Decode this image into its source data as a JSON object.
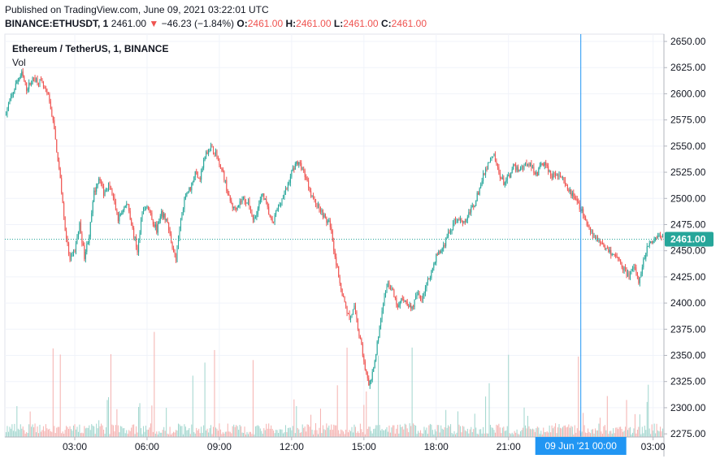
{
  "header": {
    "published": "Published on TradingView.com, June 09, 2021 03:22:01 UTC",
    "symbol": "BINANCE:ETHUSDT, 1",
    "last": "2461.00",
    "arrow": "▼",
    "change": "−46.23 (−1.84%)",
    "o_label": "O:",
    "o_value": "2461.00",
    "h_label": "H:",
    "h_value": "2461.00",
    "l_label": "L:",
    "l_value": "2461.00",
    "c_label": "C:",
    "c_value": "2461.00"
  },
  "legend": {
    "title": "Ethereum / TetherUS, 1, BINANCE",
    "vol": "Vol"
  },
  "colors": {
    "up": "#26a69a",
    "down": "#ef5350",
    "vol_up": "#a3d7cf",
    "vol_down": "#f5b3b1",
    "crosshair": "#2196f3",
    "price_tag": "#26a69a",
    "grid": "#f0f3fa"
  },
  "chart_data": {
    "type": "candlestick",
    "ylim": [
      2272,
      2657
    ],
    "y_ticks": [
      "2650.00",
      "2625.00",
      "2600.00",
      "2575.00",
      "2550.00",
      "2525.00",
      "2500.00",
      "2475.00",
      "2450.00",
      "2425.00",
      "2400.00",
      "2375.00",
      "2350.00",
      "2325.00",
      "2300.00",
      "2275.00"
    ],
    "y_tick_values": [
      2650,
      2625,
      2600,
      2575,
      2550,
      2525,
      2500,
      2475,
      2450,
      2425,
      2400,
      2375,
      2350,
      2325,
      2300,
      2275
    ],
    "x_ticks": [
      "03:00",
      "06:00",
      "09:00",
      "12:00",
      "15:00",
      "18:00",
      "21:00",
      "03:00"
    ],
    "x_tick_hours": [
      3,
      6,
      9,
      12,
      15,
      18,
      21,
      27
    ],
    "x_range_hours": [
      0.1,
      27.45
    ],
    "crosshair_hour": 24,
    "crosshair_label": "09 Jun '21   00:00",
    "last_price": 2461.0,
    "last_price_label": "2461.00",
    "price_path": [
      [
        0.1,
        2580
      ],
      [
        0.4,
        2598
      ],
      [
        0.6,
        2612
      ],
      [
        0.8,
        2619
      ],
      [
        1.0,
        2605
      ],
      [
        1.3,
        2615
      ],
      [
        1.6,
        2611
      ],
      [
        1.9,
        2597
      ],
      [
        2.1,
        2575
      ],
      [
        2.2,
        2555
      ],
      [
        2.4,
        2520
      ],
      [
        2.6,
        2470
      ],
      [
        2.8,
        2440
      ],
      [
        3.0,
        2450
      ],
      [
        3.2,
        2475
      ],
      [
        3.4,
        2445
      ],
      [
        3.6,
        2465
      ],
      [
        3.8,
        2505
      ],
      [
        4.0,
        2520
      ],
      [
        4.2,
        2505
      ],
      [
        4.4,
        2515
      ],
      [
        4.6,
        2500
      ],
      [
        4.8,
        2480
      ],
      [
        5.0,
        2490
      ],
      [
        5.2,
        2495
      ],
      [
        5.4,
        2470
      ],
      [
        5.6,
        2450
      ],
      [
        5.8,
        2485
      ],
      [
        6.0,
        2495
      ],
      [
        6.2,
        2480
      ],
      [
        6.4,
        2470
      ],
      [
        6.6,
        2485
      ],
      [
        6.8,
        2480
      ],
      [
        7.0,
        2460
      ],
      [
        7.2,
        2440
      ],
      [
        7.4,
        2480
      ],
      [
        7.6,
        2505
      ],
      [
        7.8,
        2510
      ],
      [
        8.0,
        2525
      ],
      [
        8.2,
        2520
      ],
      [
        8.4,
        2540
      ],
      [
        8.6,
        2550
      ],
      [
        8.8,
        2545
      ],
      [
        9.0,
        2535
      ],
      [
        9.2,
        2520
      ],
      [
        9.4,
        2500
      ],
      [
        9.6,
        2490
      ],
      [
        9.8,
        2495
      ],
      [
        10.0,
        2500
      ],
      [
        10.2,
        2495
      ],
      [
        10.4,
        2480
      ],
      [
        10.6,
        2490
      ],
      [
        10.8,
        2505
      ],
      [
        11.0,
        2490
      ],
      [
        11.2,
        2475
      ],
      [
        11.4,
        2490
      ],
      [
        11.6,
        2500
      ],
      [
        11.8,
        2510
      ],
      [
        12.0,
        2525
      ],
      [
        12.2,
        2535
      ],
      [
        12.4,
        2530
      ],
      [
        12.6,
        2520
      ],
      [
        12.8,
        2505
      ],
      [
        13.0,
        2495
      ],
      [
        13.2,
        2490
      ],
      [
        13.4,
        2480
      ],
      [
        13.6,
        2475
      ],
      [
        13.8,
        2445
      ],
      [
        14.0,
        2420
      ],
      [
        14.2,
        2400
      ],
      [
        14.4,
        2385
      ],
      [
        14.6,
        2395
      ],
      [
        14.8,
        2370
      ],
      [
        15.0,
        2345
      ],
      [
        15.2,
        2320
      ],
      [
        15.4,
        2335
      ],
      [
        15.6,
        2370
      ],
      [
        15.8,
        2400
      ],
      [
        16.0,
        2420
      ],
      [
        16.2,
        2410
      ],
      [
        16.4,
        2395
      ],
      [
        16.6,
        2405
      ],
      [
        16.8,
        2400
      ],
      [
        17.0,
        2395
      ],
      [
        17.2,
        2408
      ],
      [
        17.4,
        2405
      ],
      [
        17.6,
        2418
      ],
      [
        17.8,
        2430
      ],
      [
        18.0,
        2445
      ],
      [
        18.2,
        2450
      ],
      [
        18.4,
        2460
      ],
      [
        18.6,
        2470
      ],
      [
        18.8,
        2480
      ],
      [
        19.0,
        2480
      ],
      [
        19.2,
        2478
      ],
      [
        19.4,
        2488
      ],
      [
        19.6,
        2495
      ],
      [
        19.8,
        2510
      ],
      [
        20.0,
        2525
      ],
      [
        20.2,
        2535
      ],
      [
        20.4,
        2540
      ],
      [
        20.6,
        2525
      ],
      [
        20.8,
        2515
      ],
      [
        21.0,
        2520
      ],
      [
        21.2,
        2530
      ],
      [
        21.4,
        2528
      ],
      [
        21.6,
        2530
      ],
      [
        21.8,
        2535
      ],
      [
        22.0,
        2528
      ],
      [
        22.2,
        2524
      ],
      [
        22.4,
        2535
      ],
      [
        22.6,
        2530
      ],
      [
        22.8,
        2520
      ],
      [
        23.0,
        2525
      ],
      [
        23.2,
        2520
      ],
      [
        23.4,
        2510
      ],
      [
        23.6,
        2505
      ],
      [
        23.8,
        2500
      ],
      [
        24.0,
        2490
      ],
      [
        24.2,
        2480
      ],
      [
        24.4,
        2470
      ],
      [
        24.6,
        2462
      ],
      [
        24.8,
        2460
      ],
      [
        25.0,
        2455
      ],
      [
        25.2,
        2450
      ],
      [
        25.4,
        2445
      ],
      [
        25.6,
        2440
      ],
      [
        25.8,
        2432
      ],
      [
        26.0,
        2425
      ],
      [
        26.2,
        2435
      ],
      [
        26.4,
        2420
      ],
      [
        26.6,
        2440
      ],
      [
        26.8,
        2455
      ],
      [
        27.0,
        2460
      ],
      [
        27.2,
        2465
      ],
      [
        27.45,
        2461
      ]
    ],
    "volume_spike_hours": [
      2.1,
      2.4,
      4.5,
      6.3,
      7.9,
      8.4,
      8.8,
      10.4,
      12.1,
      13.9,
      14.3,
      15.1,
      15.6,
      17.0,
      20.2,
      21.0,
      23.9,
      25.1,
      26.8
    ],
    "volume_axis_note": "volume bars scaled to bottom pane"
  }
}
